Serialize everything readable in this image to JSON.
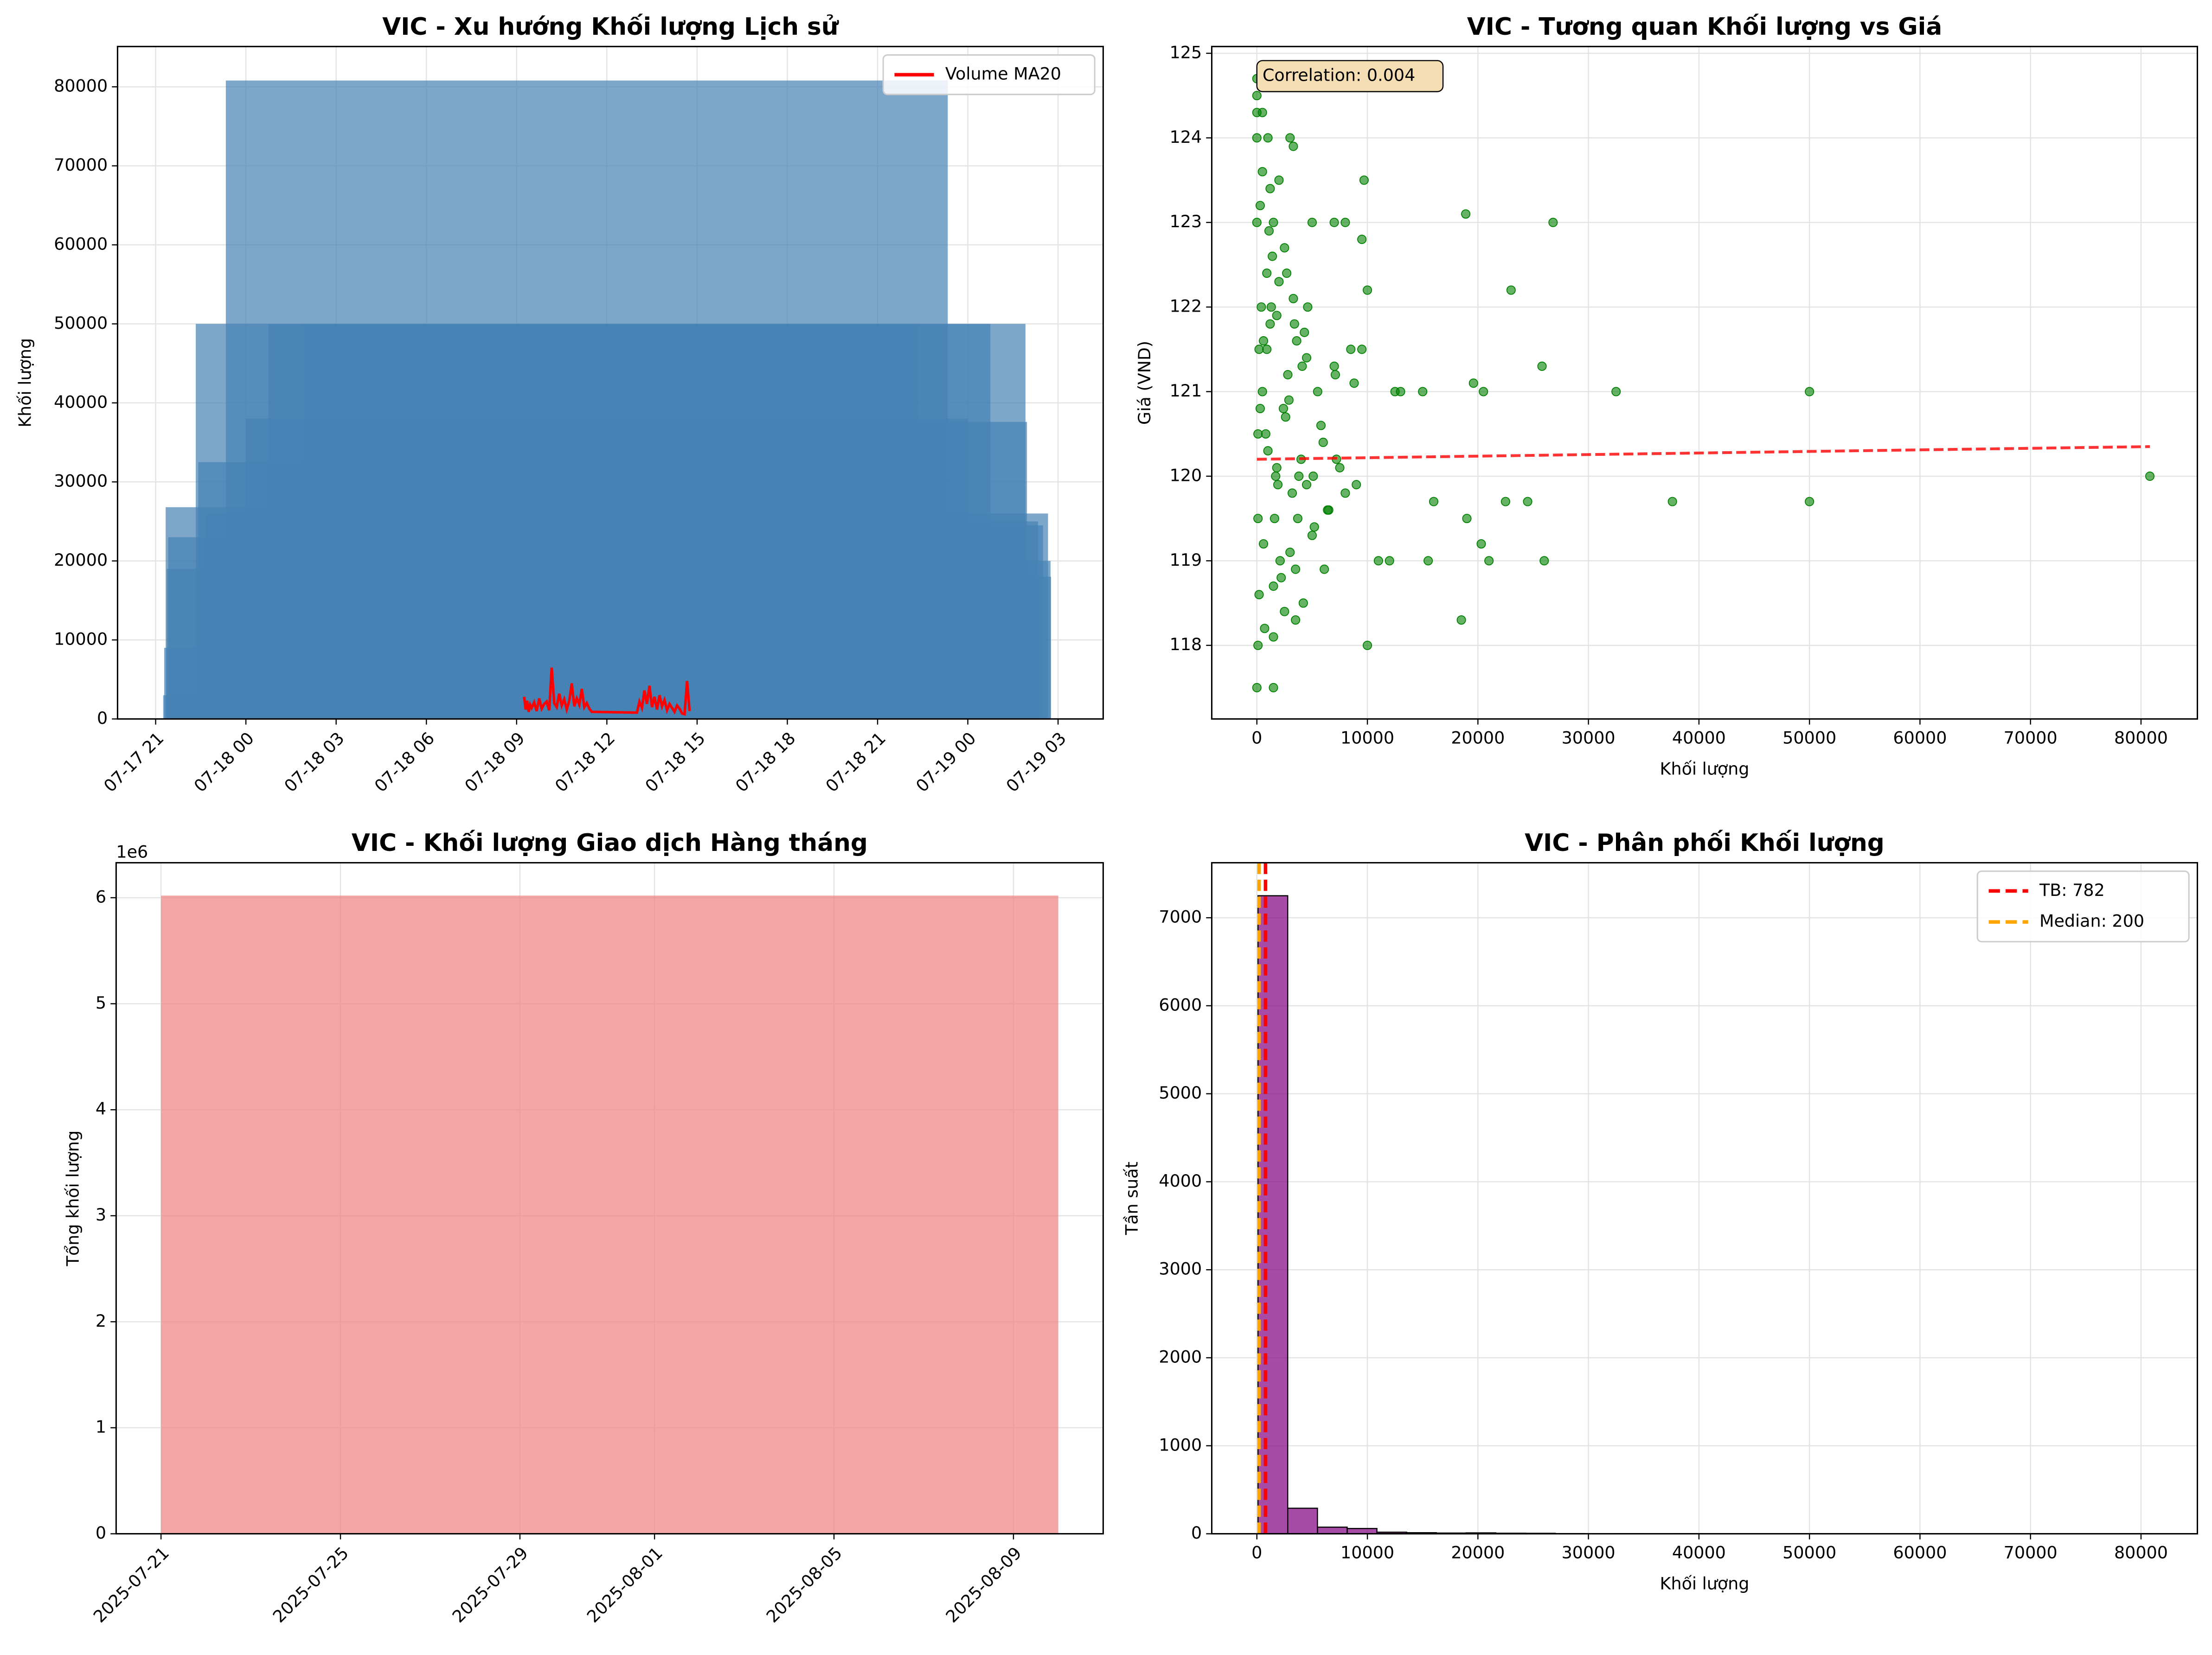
{
  "chart_data": [
    {
      "type": "bar",
      "title": "VIC - Xu hướng Khối lượng Lịch sử",
      "ylabel": "Khối lượng",
      "x": [
        "07-18 09:15",
        "07-18 09:17",
        "07-18 09:20",
        "07-18 09:22",
        "07-18 09:25",
        "07-18 10:20",
        "07-18 10:25",
        "07-18 10:40",
        "07-18 11:20",
        "07-18 12:00",
        "07-18 12:45",
        "07-18 13:55",
        "07-18 13:58",
        "07-18 14:20",
        "07-18 14:30",
        "07-18 14:40",
        "07-18 14:45",
        "07-18 14:46"
      ],
      "values": [
        3000,
        9000,
        26800,
        19000,
        23000,
        50000,
        32500,
        26000,
        80800,
        38000,
        50000,
        50000,
        37600,
        25000,
        24500,
        26000,
        20000,
        18000
      ],
      "color": "rgba(70,130,180,0.7)",
      "line": {
        "name": "Volume MA20",
        "color": "#ff0000",
        "x": [
          "07-18 09:15",
          "07-18 09:18",
          "07-18 09:21",
          "07-18 09:24",
          "07-18 09:27",
          "07-18 09:30",
          "07-18 09:35",
          "07-18 09:40",
          "07-18 09:45",
          "07-18 09:50",
          "07-18 09:55",
          "07-18 10:00",
          "07-18 10:05",
          "07-18 10:10",
          "07-18 10:15",
          "07-18 10:20",
          "07-18 10:25",
          "07-18 10:30",
          "07-18 10:35",
          "07-18 10:40",
          "07-18 10:45",
          "07-18 10:50",
          "07-18 10:55",
          "07-18 11:00",
          "07-18 11:05",
          "07-18 11:10",
          "07-18 11:15",
          "07-18 11:20",
          "07-18 11:25",
          "07-18 11:30",
          "07-18 13:00",
          "07-18 13:05",
          "07-18 13:10",
          "07-18 13:15",
          "07-18 13:20",
          "07-18 13:25",
          "07-18 13:30",
          "07-18 13:35",
          "07-18 13:40",
          "07-18 13:45",
          "07-18 13:50",
          "07-18 13:55",
          "07-18 14:00",
          "07-18 14:05",
          "07-18 14:10",
          "07-18 14:15",
          "07-18 14:20",
          "07-18 14:25",
          "07-18 14:30",
          "07-18 14:35",
          "07-18 14:40",
          "07-18 14:45"
        ],
        "values": [
          2800,
          1200,
          2300,
          900,
          1800,
          1400,
          2100,
          1000,
          2600,
          1300,
          1900,
          2200,
          1100,
          6500,
          2000,
          1500,
          3200,
          1700,
          2500,
          1200,
          2300,
          4500,
          1600,
          2600,
          1800,
          3800,
          1500,
          2000,
          1300,
          900,
          800,
          2200,
          1400,
          3600,
          1900,
          4200,
          1500,
          2800,
          1200,
          3000,
          1600,
          2400,
          1100,
          1900,
          1400,
          900,
          1700,
          1300,
          700,
          600,
          4800,
          1000
        ]
      },
      "xlim": [
        "07-17 19:44",
        "07-19 04:30"
      ],
      "xticks": [
        "07-17 21",
        "07-18 00",
        "07-18 03",
        "07-18 06",
        "07-18 09",
        "07-18 12",
        "07-18 15",
        "07-18 18",
        "07-18 21",
        "07-19 00",
        "07-19 03"
      ],
      "ylim": [
        0,
        85100
      ],
      "yticks": [
        0,
        10000,
        20000,
        30000,
        40000,
        50000,
        60000,
        70000,
        80000
      ],
      "grid": true,
      "legend": "upper right"
    },
    {
      "type": "scatter",
      "title": "VIC - Tương quan Khối lượng vs Giá",
      "xlabel": "Khối lượng",
      "ylabel": "Giá (VND)",
      "x": [
        0,
        0,
        0,
        100,
        0,
        1500,
        500,
        0,
        1000,
        3000,
        3300,
        2000,
        0,
        1500,
        5000,
        7000,
        8000,
        9500,
        18900,
        26800,
        23000,
        10000,
        9700,
        32500,
        50000,
        25800,
        19600,
        37600,
        50000,
        80800,
        26000,
        18500,
        10000,
        22500,
        24500,
        19000,
        20300,
        21000,
        15500,
        12000,
        16000,
        13000,
        15000,
        20500,
        12500,
        200,
        400,
        800,
        1200,
        1600,
        2000,
        2400,
        2800,
        3200,
        3600,
        4000,
        4500,
        5000,
        5500,
        6000,
        6500,
        7000,
        7500,
        8000,
        8500,
        9000,
        9500,
        200,
        600,
        1000,
        1400,
        1800,
        2200,
        2600,
        3000,
        3400,
        3800,
        4200,
        4600,
        5200,
        5800,
        6400,
        7200,
        8800,
        11000,
        300,
        700,
        1100,
        1900,
        2700,
        3500,
        4300,
        5100,
        6100,
        7100,
        100,
        500,
        900,
        1300,
        1700,
        2100,
        2500,
        2900,
        3300,
        3700,
        4100,
        500,
        1500,
        2500,
        3500,
        4500,
        100,
        300,
        600,
        900,
        1200,
        1500,
        1800
      ],
      "values": [
        124.7,
        124.5,
        117.5,
        118,
        124.3,
        117.5,
        124.3,
        124,
        124,
        124,
        123.9,
        123.5,
        123,
        123,
        123,
        123,
        123,
        122.8,
        123.1,
        123,
        122.2,
        122.2,
        123.5,
        121,
        121,
        121.3,
        121.1,
        119.7,
        119.7,
        120,
        119,
        118.3,
        118,
        119.7,
        119.7,
        119.5,
        119.2,
        119,
        119,
        119,
        119.7,
        121,
        121,
        121,
        121,
        121.5,
        122,
        120.5,
        121.8,
        119.5,
        122.3,
        120.8,
        121.2,
        119.8,
        121.6,
        120.2,
        121.4,
        119.3,
        121,
        120.4,
        119.6,
        121.3,
        120.1,
        119.8,
        121.5,
        119.9,
        121.5,
        118.6,
        119.2,
        120.3,
        122.6,
        121.9,
        118.8,
        120.7,
        119.1,
        121.8,
        120,
        118.5,
        122,
        119.4,
        120.6,
        119.6,
        120.2,
        121.1,
        119,
        123.2,
        118.2,
        122.9,
        119.9,
        122.4,
        118.9,
        121.7,
        120,
        118.9,
        121.2,
        120.5,
        121,
        121.5,
        122,
        120,
        119,
        118.4,
        120.9,
        122.1,
        119.5,
        121.3,
        123.6,
        118.1,
        122.7,
        118.3,
        119.9,
        119.5,
        120.8,
        121.6,
        122.4,
        123.4,
        118.7,
        120.1
      ],
      "color": "#008000",
      "trendline": {
        "color": "#ff0000",
        "x": [
          0,
          80800
        ],
        "y": [
          120.2,
          120.35
        ]
      },
      "annotation": "Correlation: 0.004",
      "xlim": [
        -4083,
        85100
      ],
      "xticks": [
        0,
        10000,
        20000,
        30000,
        40000,
        50000,
        60000,
        70000,
        80000
      ],
      "ylim": [
        117.13,
        125.08
      ],
      "yticks": [
        118,
        119,
        120,
        121,
        122,
        123,
        124,
        125
      ],
      "grid": true
    },
    {
      "type": "bar",
      "title": "VIC - Khối lượng Giao dịch Hàng tháng",
      "ylabel": "Tổng khối lượng",
      "x": [
        "2025-07-31"
      ],
      "values": [
        6020000
      ],
      "color": "rgba(240,128,128,0.7)",
      "xlim": [
        "2025-07-20",
        "2025-08-11"
      ],
      "xticks": [
        "2025-07-21",
        "2025-07-25",
        "2025-07-29",
        "2025-08-01",
        "2025-08-05",
        "2025-08-09"
      ],
      "ylim": [
        0,
        6330000
      ],
      "yticks": [
        0,
        {
          "value": 1000000,
          "label": "1"
        },
        {
          "value": 2000000,
          "label": "2"
        },
        {
          "value": 3000000,
          "label": "3"
        },
        {
          "value": 4000000,
          "label": "4"
        },
        {
          "value": 5000000,
          "label": "5"
        },
        {
          "value": 6000000,
          "label": "6"
        }
      ],
      "y_offset_label": "1e6",
      "grid": true
    },
    {
      "type": "histogram",
      "title": "VIC - Phân phối Khối lượng",
      "xlabel": "Khối lượng",
      "ylabel": "Tần suất",
      "bins": [
        100,
        2790,
        5480,
        8170,
        10860,
        13550,
        16240,
        18930,
        21620,
        24310,
        27000,
        29690,
        32380,
        35070,
        37760,
        40450,
        43140,
        45830,
        48520,
        51210,
        53900,
        56590,
        59280,
        61970,
        64660,
        67350,
        70040,
        72730,
        75420,
        78110,
        80800
      ],
      "values": [
        7250,
        290,
        75,
        60,
        18,
        12,
        8,
        10,
        6,
        5,
        2,
        0,
        1,
        0,
        1,
        0,
        0,
        0,
        1,
        0,
        0,
        0,
        0,
        0,
        0,
        0,
        0,
        0,
        0,
        1
      ],
      "color": "rgba(128,0,128,0.7)",
      "lines": [
        {
          "label": "TB: 782",
          "value": 782,
          "color": "#ff0000"
        },
        {
          "label": "Median: 200",
          "value": 200,
          "color": "#ffa500"
        }
      ],
      "xlim": [
        -4083,
        85100
      ],
      "xticks": [
        0,
        10000,
        20000,
        30000,
        40000,
        50000,
        60000,
        70000,
        80000
      ],
      "ylim": [
        0,
        7625
      ],
      "yticks": [
        0,
        1000,
        2000,
        3000,
        4000,
        5000,
        6000,
        7000
      ],
      "grid": true,
      "legend": "upper right"
    }
  ]
}
